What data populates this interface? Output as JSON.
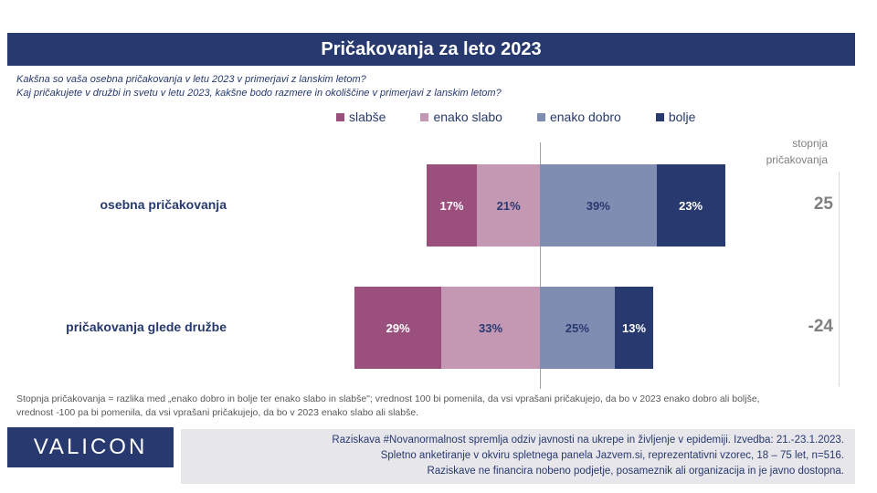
{
  "header": {
    "title": "Pričakovanja za leto 2023"
  },
  "questions": [
    "Kakšna so vaša osebna pričakovanja v letu 2023 v primerjavi z lanskim letom?",
    "Kaj pričakujete v družbi in svetu v letu 2023, kakšne bodo razmere in okoliščine v primerjavi z lanskim letom?"
  ],
  "side_header": {
    "line1": "stopnja",
    "line2": "pričakovanja"
  },
  "chart_data": {
    "type": "bar",
    "orientation": "horizontal",
    "stacked": "diverging",
    "categories": [
      "osebna pričakovanja",
      "pričakovanja glede družbe"
    ],
    "series": [
      {
        "name": "slabše",
        "color": "#9b4f7d",
        "label_color": "#ffffff",
        "side": "negative",
        "values": [
          17,
          29
        ]
      },
      {
        "name": "enako slabo",
        "color": "#c497b3",
        "label_color": "#27396f",
        "side": "negative",
        "values": [
          21,
          33
        ]
      },
      {
        "name": "enako dobro",
        "color": "#7f8db2",
        "label_color": "#27396f",
        "side": "positive",
        "values": [
          39,
          25
        ]
      },
      {
        "name": "bolje",
        "color": "#27396f",
        "label_color": "#ffffff",
        "side": "positive",
        "values": [
          23,
          13
        ]
      }
    ],
    "value_suffix": "%",
    "index_values": [
      25,
      -24
    ],
    "legend_position": "top",
    "grid": false
  },
  "footnote": [
    "Stopnja pričakovanja = razlika med „enako dobro in bolje ter enako slabo in slabše\"; vrednost 100 bi pomenila, da vsi vprašani pričakujejo, da bo v 2023 enako dobro ali boljše,",
    "vrednost -100 pa bi pomenila, da vsi vprašani pričakujejo, da bo v 2023 enako slabo ali slabše."
  ],
  "logo": {
    "text": "VALICON"
  },
  "info": [
    "Raziskava #Novanormalnost spremlja odziv javnosti na ukrepe in življenje v epidemiji. Izvedba: 21.-23.1.2023.",
    "Spletno anketiranje v okviru spletnega panela Jazvem.si, reprezentativni vzorec, 18 – 75 let, n=516.",
    "Raziskave ne financira nobeno podjetje, posameznik ali organizacija in je javno dostopna."
  ]
}
